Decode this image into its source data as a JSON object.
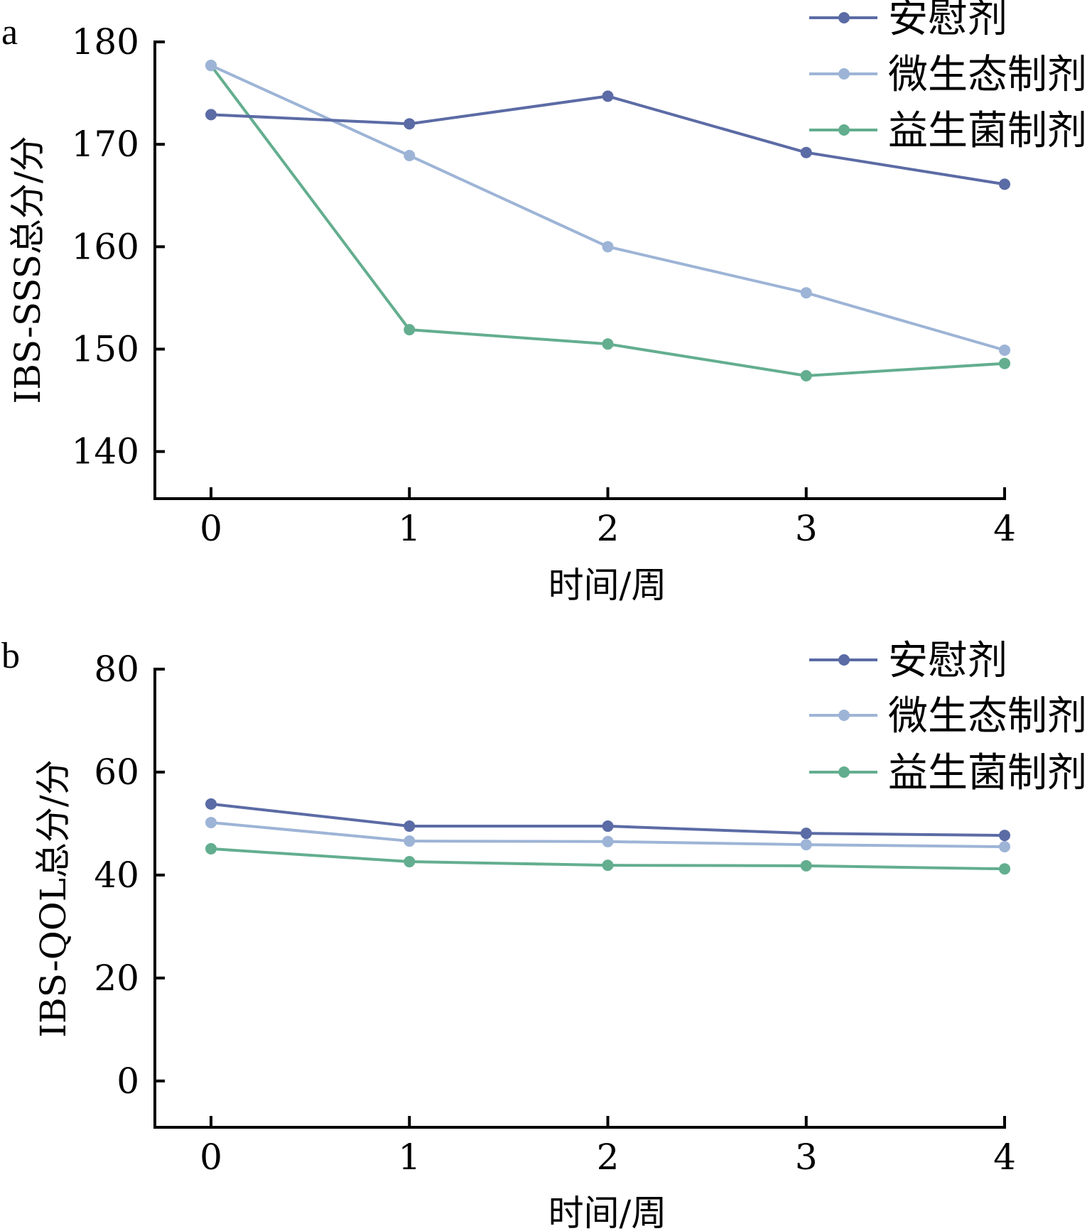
{
  "chart_data": [
    {
      "panel_label": "a",
      "type": "line",
      "title": "",
      "xlabel": "时间/周",
      "ylabel": "IBS-SSS总分/分",
      "x": [
        0,
        1,
        2,
        3,
        4
      ],
      "x_tick_labels": [
        "0",
        "1",
        "2",
        "3",
        "4"
      ],
      "y_ticks": [
        140,
        150,
        160,
        170,
        180
      ],
      "y_tick_labels": [
        "140",
        "150",
        "160",
        "170",
        "180"
      ],
      "ylim": [
        135.4,
        180
      ],
      "xlim": [
        -0.28,
        4
      ],
      "grid": false,
      "legend_position": "top-right",
      "series": [
        {
          "name": "安慰剂",
          "color": "#5B6BA5",
          "values": [
            172.9,
            172.0,
            174.7,
            169.2,
            166.1
          ]
        },
        {
          "name": "微生态制剂",
          "color": "#9DB4D6",
          "values": [
            177.7,
            168.9,
            160.0,
            155.5,
            149.9
          ]
        },
        {
          "name": "益生菌制剂",
          "color": "#63AE8F",
          "values": [
            177.7,
            151.9,
            150.5,
            147.4,
            148.6
          ]
        }
      ]
    },
    {
      "panel_label": "b",
      "type": "line",
      "title": "",
      "xlabel": "时间/周",
      "ylabel": "IBS-QOL总分/分",
      "x": [
        0,
        1,
        2,
        3,
        4
      ],
      "x_tick_labels": [
        "0",
        "1",
        "2",
        "3",
        "4"
      ],
      "y_ticks": [
        0,
        20,
        40,
        60,
        80
      ],
      "y_tick_labels": [
        "0",
        "20",
        "40",
        "60",
        "80"
      ],
      "ylim": [
        -9,
        80
      ],
      "xlim": [
        -0.28,
        4
      ],
      "grid": false,
      "legend_position": "top-right",
      "series": [
        {
          "name": "安慰剂",
          "color": "#5B6BA5",
          "values": [
            53.8,
            49.5,
            49.5,
            48.1,
            47.7
          ]
        },
        {
          "name": "微生态制剂",
          "color": "#9DB4D6",
          "values": [
            50.2,
            46.6,
            46.5,
            45.9,
            45.5
          ]
        },
        {
          "name": "益生菌制剂",
          "color": "#63AE8F",
          "values": [
            45.1,
            42.6,
            41.9,
            41.8,
            41.2
          ]
        }
      ]
    }
  ]
}
